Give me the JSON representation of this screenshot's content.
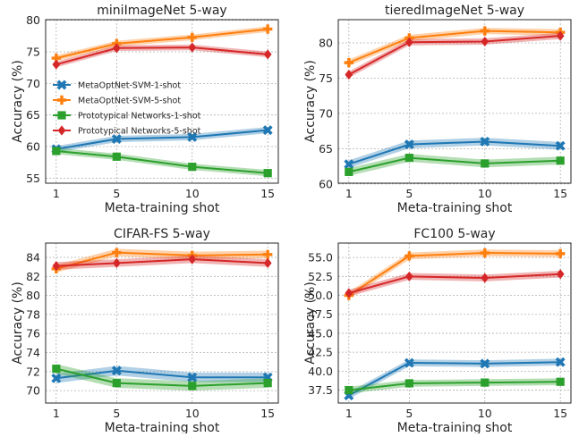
{
  "figure": {
    "colors": {
      "MetaOptNet-SVM-1-shot": "#1f77b4",
      "MetaOptNet-SVM-5-shot": "#ff7f0e",
      "Prototypical Networks-1-shot": "#2ca02c",
      "Prototypical Networks-5-shot": "#d62728"
    },
    "markers": {
      "MetaOptNet-SVM-1-shot": "x-marker",
      "MetaOptNet-SVM-5-shot": "plus-marker",
      "Prototypical Networks-1-shot": "square-marker",
      "Prototypical Networks-5-shot": "diamond-marker"
    }
  },
  "chart_data": [
    {
      "type": "line",
      "title": "miniImageNet 5-way",
      "xlabel": "Meta-training shot",
      "ylabel": "Accuracy (%)",
      "x": [
        1,
        5,
        10,
        15
      ],
      "xticks": [
        "1",
        "5",
        "10",
        "15"
      ],
      "yticks": [
        "55",
        "60",
        "65",
        "70",
        "75",
        "80"
      ],
      "ylim": [
        54.2,
        80.1
      ],
      "grid": true,
      "legend": {
        "placement": "center-left",
        "entries": [
          "MetaOptNet-SVM-1-shot",
          "MetaOptNet-SVM-5-shot",
          "Prototypical Networks-1-shot",
          "Prototypical Networks-5-shot"
        ]
      },
      "series": [
        {
          "name": "MetaOptNet-SVM-1-shot",
          "values": [
            59.6,
            61.2,
            61.5,
            62.6
          ],
          "band": 0.5
        },
        {
          "name": "MetaOptNet-SVM-5-shot",
          "values": [
            74.0,
            76.3,
            77.3,
            78.6
          ],
          "band": 0.45
        },
        {
          "name": "Prototypical Networks-1-shot",
          "values": [
            59.3,
            58.4,
            56.8,
            55.8
          ],
          "band": 0.5
        },
        {
          "name": "Prototypical Networks-5-shot",
          "values": [
            73.0,
            75.6,
            75.7,
            74.6
          ],
          "band": 0.45
        }
      ]
    },
    {
      "type": "line",
      "title": "tieredImageNet 5-way",
      "xlabel": "Meta-training shot",
      "ylabel": "Accuracy (%)",
      "x": [
        1,
        5,
        10,
        15
      ],
      "xticks": [
        "1",
        "5",
        "10",
        "15"
      ],
      "yticks": [
        "60",
        "65",
        "70",
        "75",
        "80"
      ],
      "ylim": [
        60.1,
        83.3
      ],
      "grid": true,
      "series": [
        {
          "name": "MetaOptNet-SVM-1-shot",
          "values": [
            62.8,
            65.6,
            66.0,
            65.4
          ],
          "band": 0.55
        },
        {
          "name": "MetaOptNet-SVM-5-shot",
          "values": [
            77.2,
            80.7,
            81.7,
            81.5
          ],
          "band": 0.45
        },
        {
          "name": "Prototypical Networks-1-shot",
          "values": [
            61.7,
            63.7,
            62.9,
            63.3
          ],
          "band": 0.55
        },
        {
          "name": "Prototypical Networks-5-shot",
          "values": [
            75.5,
            80.1,
            80.2,
            81.0
          ],
          "band": 0.45
        }
      ]
    },
    {
      "type": "line",
      "title": "CIFAR-FS 5-way",
      "xlabel": "Meta-training shot",
      "ylabel": "Accuracy (%)",
      "x": [
        1,
        5,
        10,
        15
      ],
      "xticks": [
        "1",
        "5",
        "10",
        "15"
      ],
      "yticks": [
        "70",
        "72",
        "74",
        "76",
        "78",
        "80",
        "82",
        "84"
      ],
      "ylim": [
        68.7,
        85.5
      ],
      "grid": true,
      "series": [
        {
          "name": "MetaOptNet-SVM-1-shot",
          "values": [
            71.3,
            72.1,
            71.4,
            71.4
          ],
          "band": 0.5
        },
        {
          "name": "MetaOptNet-SVM-5-shot",
          "values": [
            82.8,
            84.5,
            84.2,
            84.3
          ],
          "band": 0.4
        },
        {
          "name": "Prototypical Networks-1-shot",
          "values": [
            72.3,
            70.8,
            70.5,
            70.8
          ],
          "band": 0.5
        },
        {
          "name": "Prototypical Networks-5-shot",
          "values": [
            83.1,
            83.4,
            83.8,
            83.4
          ],
          "band": 0.4
        }
      ]
    },
    {
      "type": "line",
      "title": "FC100 5-way",
      "xlabel": "Meta-training shot",
      "ylabel": "Accuracy (%)",
      "x": [
        1,
        5,
        10,
        15
      ],
      "xticks": [
        "1",
        "5",
        "10",
        "15"
      ],
      "yticks": [
        "37.5",
        "40.0",
        "42.5",
        "45.0",
        "47.5",
        "50.0",
        "52.5",
        "55.0"
      ],
      "ylim": [
        35.8,
        56.9
      ],
      "grid": true,
      "series": [
        {
          "name": "MetaOptNet-SVM-1-shot",
          "values": [
            36.8,
            41.1,
            41.0,
            41.2
          ],
          "band": 0.45
        },
        {
          "name": "MetaOptNet-SVM-5-shot",
          "values": [
            50.0,
            55.2,
            55.6,
            55.5
          ],
          "band": 0.45
        },
        {
          "name": "Prototypical Networks-1-shot",
          "values": [
            37.5,
            38.4,
            38.5,
            38.6
          ],
          "band": 0.45
        },
        {
          "name": "Prototypical Networks-5-shot",
          "values": [
            50.3,
            52.5,
            52.3,
            52.8
          ],
          "band": 0.45
        }
      ]
    }
  ]
}
